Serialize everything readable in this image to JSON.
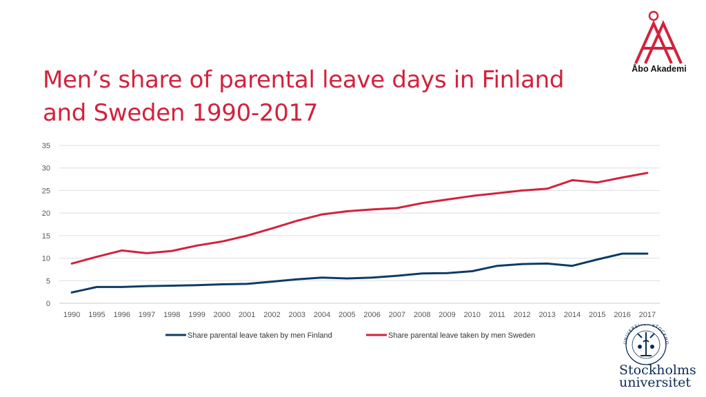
{
  "title_line1": "Men’s share of parental leave days in Finland",
  "title_line2": "and Sweden 1990-2017",
  "logos": {
    "abo": {
      "name": "Åbo Akademi",
      "color": "#d3213c"
    },
    "su": {
      "line1": "Stockholms",
      "line2": "universitet",
      "seal_text": "UNIVERSITET STOCKHOLMS",
      "color": "#0b2a56"
    }
  },
  "chart_data": {
    "type": "line",
    "title": "Men’s share of parental leave days in Finland and Sweden 1990-2017",
    "xlabel": "",
    "ylabel": "",
    "categories": [
      "1990",
      "1995",
      "1996",
      "1997",
      "1998",
      "1999",
      "2000",
      "2001",
      "2002",
      "2003",
      "2004",
      "2005",
      "2006",
      "2007",
      "2008",
      "2009",
      "2010",
      "2011",
      "2012",
      "2013",
      "2014",
      "2015",
      "2016",
      "2017"
    ],
    "ylim": [
      0,
      35
    ],
    "yticks": [
      0,
      5,
      10,
      15,
      20,
      25,
      30,
      35
    ],
    "grid": true,
    "legend_position": "bottom",
    "series": [
      {
        "name": "Share parental leave taken by men Finland",
        "color": "#0d3b66",
        "values": [
          2.4,
          3.6,
          3.6,
          3.8,
          3.9,
          4.0,
          4.2,
          4.3,
          4.8,
          5.3,
          5.7,
          5.5,
          5.7,
          6.1,
          6.6,
          6.7,
          7.1,
          8.3,
          8.7,
          8.8,
          8.3,
          9.7,
          11.0,
          11.0
        ]
      },
      {
        "name": "Share parental leave taken by men Sweden",
        "color": "#d3213c",
        "values": [
          8.8,
          10.3,
          11.7,
          11.1,
          11.6,
          12.8,
          13.7,
          15.0,
          16.6,
          18.3,
          19.7,
          20.4,
          20.8,
          21.1,
          22.2,
          23.0,
          23.8,
          24.4,
          25.0,
          25.4,
          27.3,
          26.8,
          27.9,
          28.9
        ]
      }
    ]
  }
}
